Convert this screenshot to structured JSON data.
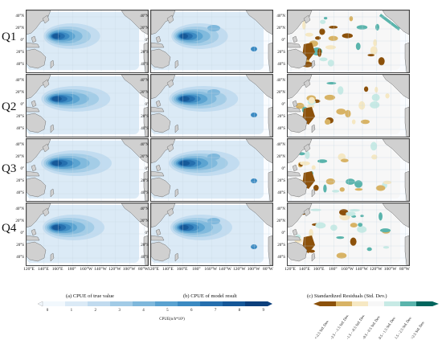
{
  "rows": [
    "Q1",
    "Q2",
    "Q3",
    "Q4"
  ],
  "lat_labels": [
    "40°N",
    "20°N",
    "0°",
    "20°S",
    "40°S"
  ],
  "lon_labels": [
    "120°E",
    "140°E",
    "160°E",
    "180°",
    "160°W",
    "140°W",
    "120°W",
    "100°W",
    "80°W"
  ],
  "columns": [
    {
      "caption": "(a)  CPUE of true value"
    },
    {
      "caption": "(b)  CPUE of model result"
    },
    {
      "caption": "(c)  Standardized Residuals (Std. Dev.)"
    }
  ],
  "cpue_colorbar": {
    "ticks": [
      "0",
      "1",
      "2",
      "3",
      "4",
      "5",
      "6",
      "7",
      "8",
      "9"
    ],
    "title": "CPUE(n/h*10³)",
    "colors": [
      "#f2f8fd",
      "#dbeaf6",
      "#c1dbef",
      "#a2cbe6",
      "#7fb8dc",
      "#5aa2d0",
      "#3b8ac2",
      "#256fae",
      "#155798",
      "#0c3f7c"
    ]
  },
  "residual_colorbar": {
    "labels": [
      "<-2.5 Std. Dev.",
      "-2.5 - -1.5 Std. Dev.",
      "-1.5 - -0.5 Std. Dev.",
      "-0.5 - 0.5 Std. Dev.",
      "0.5 - 1.5 Std. Dev.",
      "1.5 - 2.5 Std. Dev.",
      ">2.5 Std. Dev."
    ],
    "colors": [
      "#8c510a",
      "#d8b365",
      "#f6e8c3",
      "#f7f7f7",
      "#c7eae5",
      "#5ab4ac",
      "#01665e"
    ]
  },
  "colors": {
    "land": "#d0d0d0",
    "frame": "#444444",
    "grid": "#c8d6e2"
  }
}
